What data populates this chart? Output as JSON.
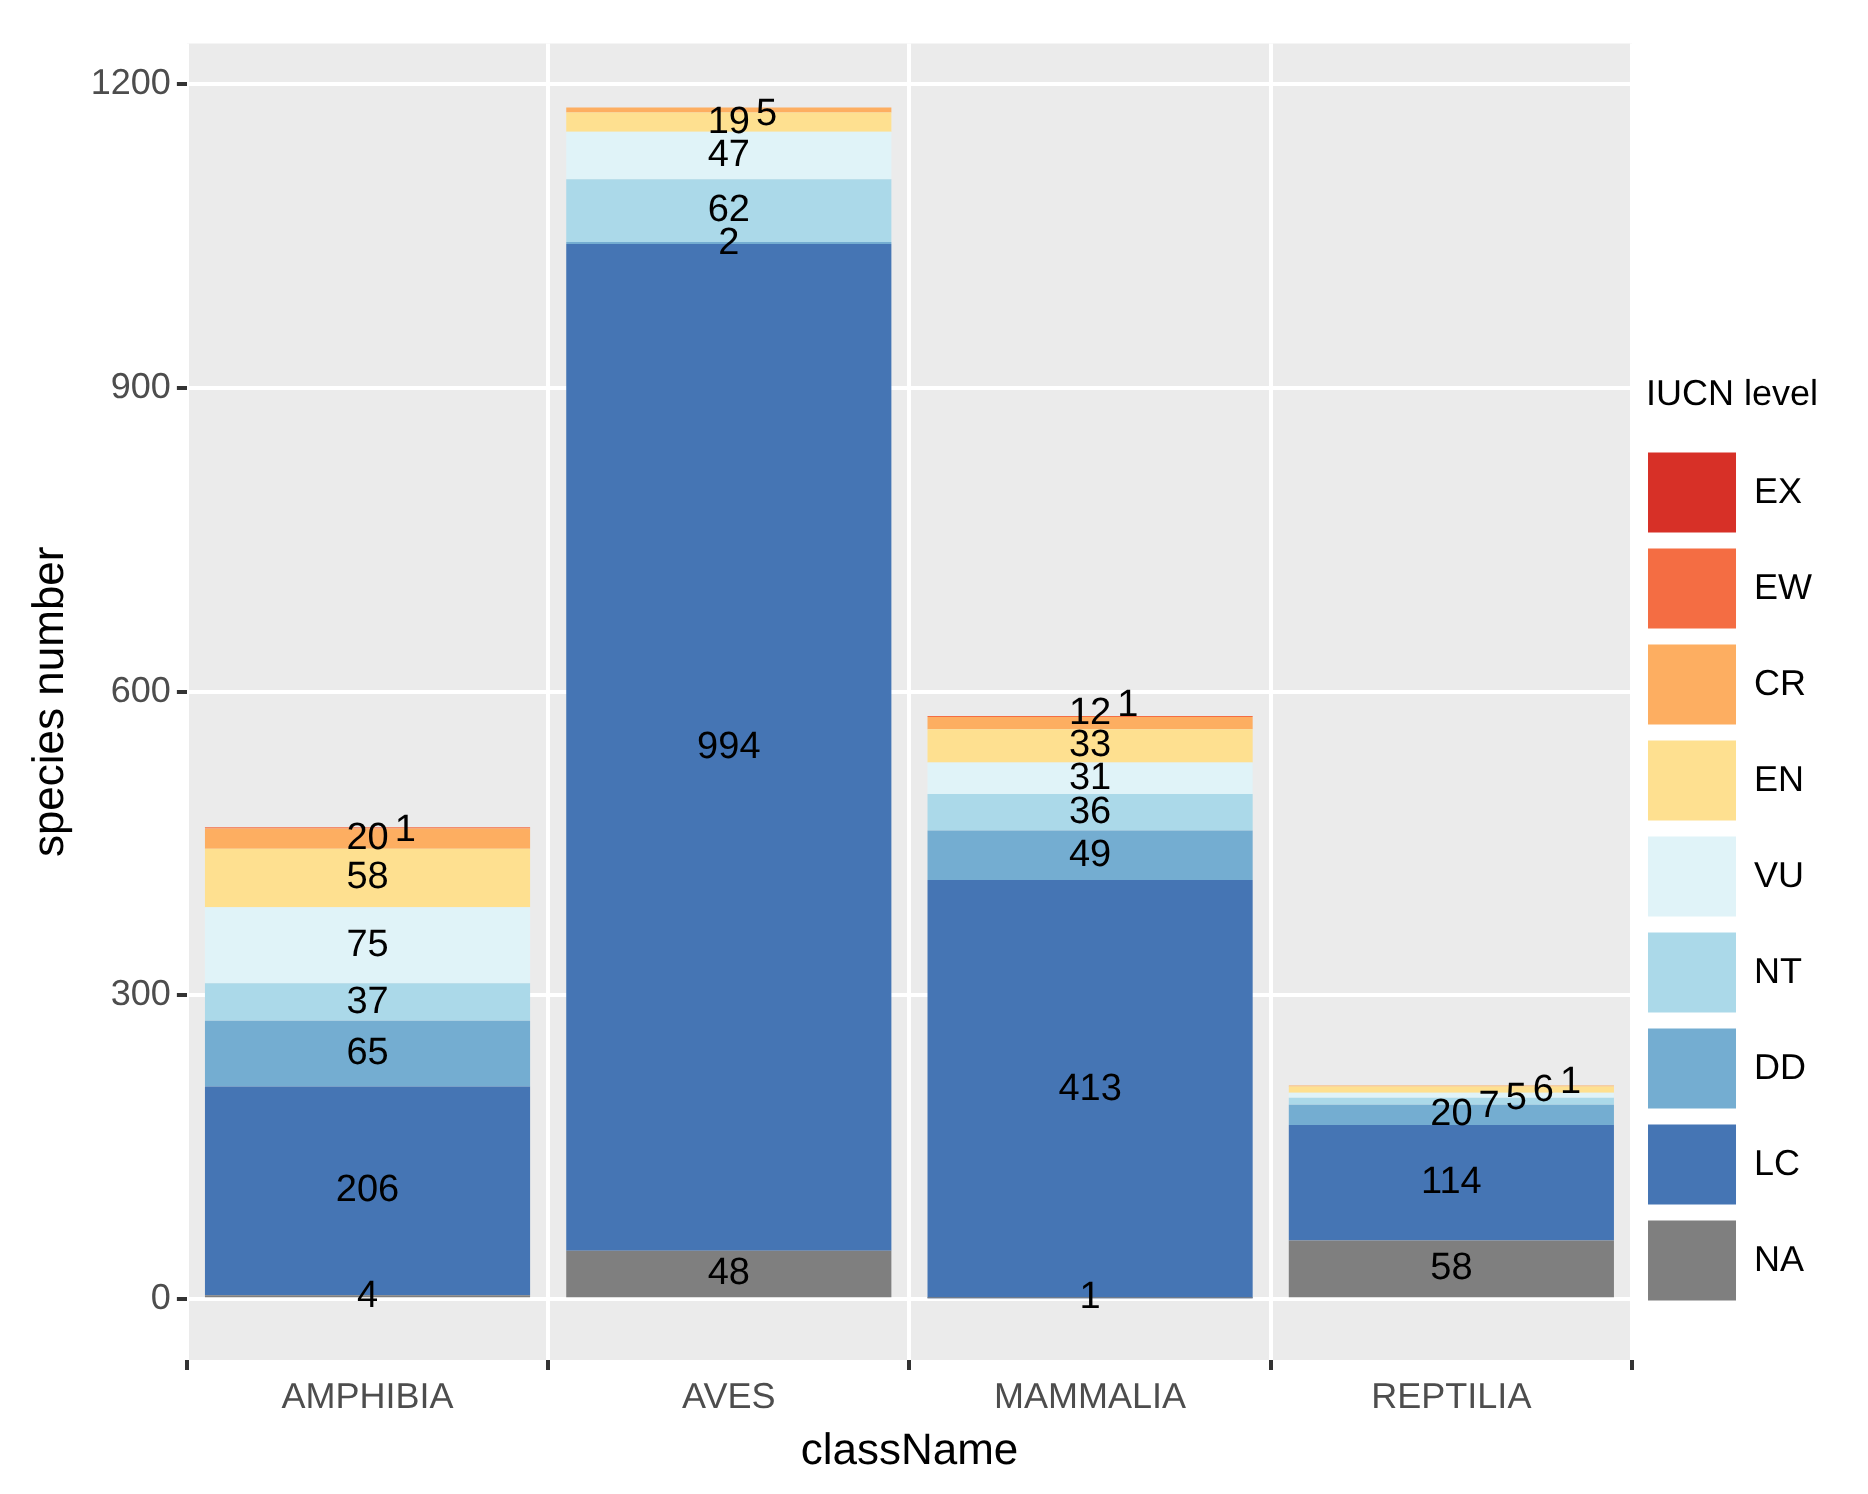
{
  "chart_data": {
    "type": "bar",
    "stacked": true,
    "xlabel": "className",
    "ylabel": "species number",
    "legend_title": "IUCN level",
    "legend": "right",
    "grid": true,
    "data_labels": true,
    "categories": [
      "AMPHIBIA",
      "AVES",
      "MAMMALIA",
      "REPTILIA"
    ],
    "ylim": [
      -60,
      1240
    ],
    "yticks": [
      0,
      300,
      600,
      900,
      1200
    ],
    "series": [
      {
        "name": "NA",
        "color": "#7f7f7f",
        "values": [
          4,
          48,
          1,
          58
        ]
      },
      {
        "name": "LC",
        "color": "#4575b4",
        "values": [
          206,
          994,
          413,
          114
        ]
      },
      {
        "name": "DD",
        "color": "#74add1",
        "values": [
          65,
          2,
          49,
          20
        ]
      },
      {
        "name": "NT",
        "color": "#abd9e9",
        "values": [
          37,
          62,
          36,
          7
        ]
      },
      {
        "name": "VU",
        "color": "#e0f3f8",
        "values": [
          75,
          47,
          31,
          5
        ]
      },
      {
        "name": "EN",
        "color": "#fee090",
        "values": [
          58,
          19,
          33,
          6
        ]
      },
      {
        "name": "CR",
        "color": "#fdae61",
        "values": [
          20,
          5,
          12,
          1
        ]
      },
      {
        "name": "EW",
        "color": "#f46d43",
        "values": [
          1,
          null,
          1,
          null
        ]
      },
      {
        "name": "EX",
        "color": "#d73027",
        "values": [
          null,
          null,
          null,
          null
        ]
      }
    ]
  }
}
